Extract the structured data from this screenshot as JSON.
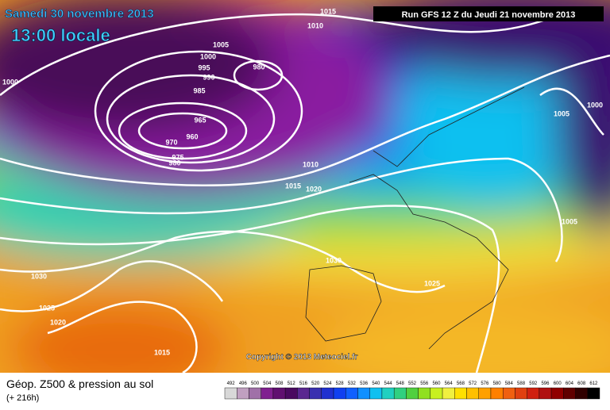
{
  "header": {
    "date": "Samedi 30 novembre 2013",
    "time": "13:00 locale",
    "run": "Run GFS 12 Z du Jeudi 21 novembre 2013"
  },
  "isobar_labels": [
    "1015",
    "1010",
    "1005",
    "1000",
    "995",
    "990",
    "980",
    "985",
    "965",
    "960",
    "970",
    "975",
    "980",
    "1000",
    "1010",
    "1015",
    "1020",
    "1030",
    "1025",
    "1030",
    "1025",
    "1020",
    "1015",
    "1005",
    "1000",
    "1005"
  ],
  "copyright": "Copyright © 2013 Meteociel.fr",
  "footer": {
    "title": "Géop. Z500 & pression au sol",
    "lead": "(+ 216h)"
  },
  "scale": {
    "labels": [
      492,
      496,
      500,
      504,
      508,
      512,
      516,
      520,
      524,
      528,
      532,
      536,
      540,
      544,
      548,
      552,
      556,
      560,
      564,
      568,
      572,
      576,
      580,
      584,
      588,
      592,
      596,
      600,
      604,
      608,
      612
    ],
    "colors": [
      "#d8d8d8",
      "#c0a0c0",
      "#a070a8",
      "#802090",
      "#601070",
      "#4a0a60",
      "#5a2890",
      "#3a30b0",
      "#2030d0",
      "#1040f0",
      "#1060ff",
      "#1090ff",
      "#10c0f0",
      "#20d0c0",
      "#30d080",
      "#50d040",
      "#90e020",
      "#c8f020",
      "#f0f040",
      "#ffe000",
      "#ffc000",
      "#ffa000",
      "#ff8000",
      "#f06010",
      "#e04010",
      "#d02010",
      "#b01010",
      "#900000",
      "#600000",
      "#300000",
      "#000000"
    ]
  }
}
